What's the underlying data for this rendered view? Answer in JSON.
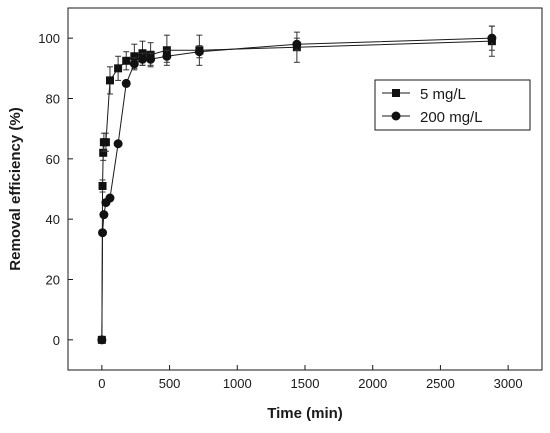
{
  "chart_data": {
    "type": "line",
    "xlabel": "Time (min)",
    "ylabel": "Removal efficiency (%)",
    "xlim": [
      -250,
      3250
    ],
    "ylim": [
      -10,
      110
    ],
    "xticks": [
      0,
      500,
      1000,
      1500,
      2000,
      2500,
      3000
    ],
    "yticks": [
      0,
      20,
      40,
      60,
      80,
      100
    ],
    "xtick_labels": [
      "0",
      "500",
      "1000",
      "1500",
      "2000",
      "2500",
      "3000"
    ],
    "ytick_labels": [
      "0",
      "20",
      "40",
      "60",
      "80",
      "100"
    ],
    "legend_position": "top-right",
    "series": [
      {
        "name": "5 mg/L",
        "marker": "square",
        "x": [
          0,
          5,
          10,
          15,
          30,
          60,
          120,
          180,
          240,
          300,
          360,
          480,
          720,
          1440,
          2880
        ],
        "y": [
          0,
          51,
          62,
          65.5,
          65.5,
          86,
          90,
          92.5,
          94,
          95,
          94.5,
          96,
          96,
          97,
          99
        ],
        "err": [
          0,
          2,
          2.5,
          3,
          3,
          4.5,
          4,
          3,
          4,
          4,
          4,
          5,
          5,
          5,
          5
        ]
      },
      {
        "name": "200 mg/L",
        "marker": "circle",
        "x": [
          0,
          5,
          15,
          30,
          60,
          120,
          180,
          240,
          300,
          360,
          480,
          720,
          1440,
          2880
        ],
        "y": [
          0,
          35.5,
          41.5,
          45.5,
          47,
          65,
          85,
          91.5,
          93,
          93,
          94,
          95.5,
          98,
          100
        ],
        "err": [
          0,
          0,
          0,
          0,
          0,
          0,
          0,
          2,
          2,
          2,
          2,
          2,
          2,
          4
        ]
      }
    ]
  }
}
